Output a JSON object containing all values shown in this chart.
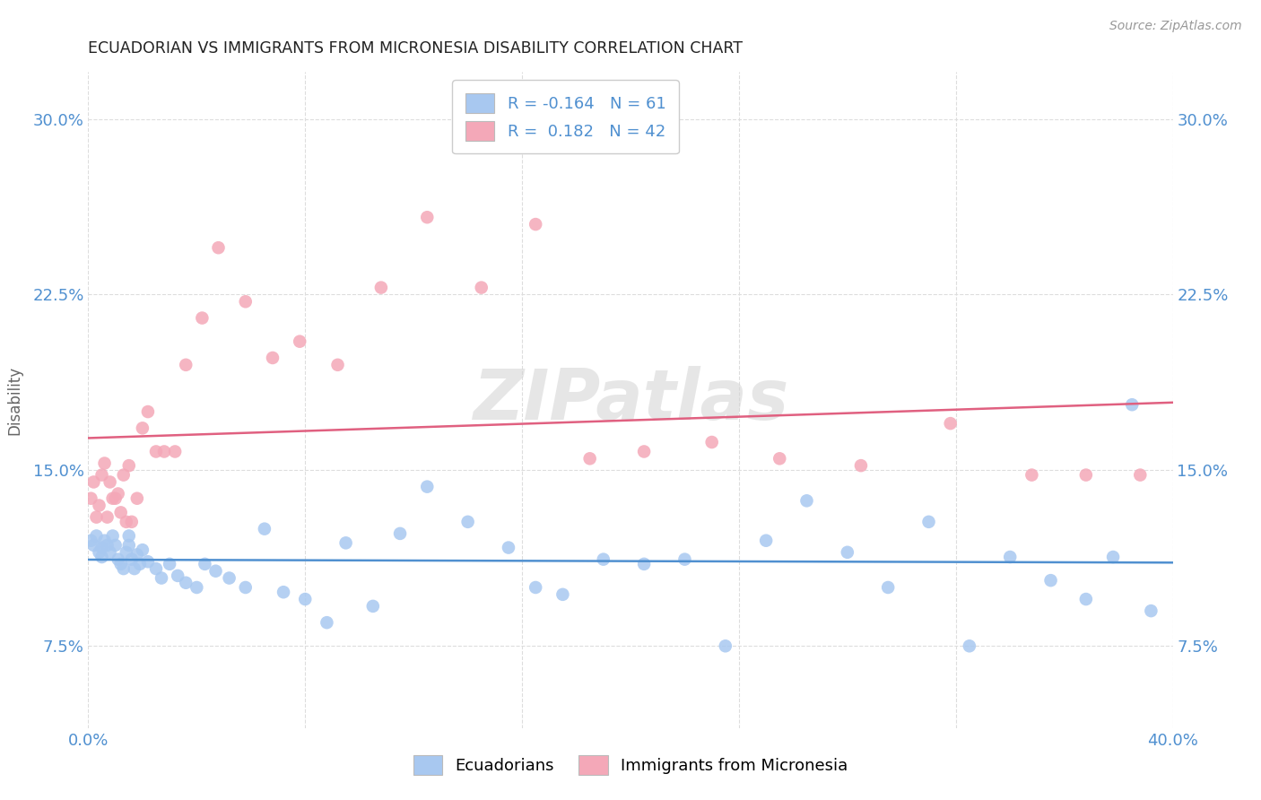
{
  "title": "ECUADORIAN VS IMMIGRANTS FROM MICRONESIA DISABILITY CORRELATION CHART",
  "source": "Source: ZipAtlas.com",
  "ylabel": "Disability",
  "xlim": [
    0.0,
    0.4
  ],
  "ylim": [
    0.04,
    0.32
  ],
  "yticks": [
    0.075,
    0.15,
    0.225,
    0.3
  ],
  "ytick_labels": [
    "7.5%",
    "15.0%",
    "22.5%",
    "30.0%"
  ],
  "xticks": [
    0.0,
    0.08,
    0.16,
    0.24,
    0.32,
    0.4
  ],
  "xtick_labels": [
    "0.0%",
    "",
    "",
    "",
    "",
    "40.0%"
  ],
  "watermark": "ZIPatlas",
  "legend_R1": "-0.164",
  "legend_N1": "61",
  "legend_R2": "0.182",
  "legend_N2": "42",
  "blue_color": "#A8C8F0",
  "pink_color": "#F4A8B8",
  "blue_line_color": "#5090D0",
  "pink_line_color": "#E06080",
  "background_color": "#FFFFFF",
  "grid_color": "#DDDDDD",
  "blue_x": [
    0.001,
    0.002,
    0.003,
    0.004,
    0.005,
    0.005,
    0.006,
    0.007,
    0.008,
    0.009,
    0.01,
    0.011,
    0.012,
    0.013,
    0.014,
    0.015,
    0.015,
    0.016,
    0.017,
    0.018,
    0.019,
    0.02,
    0.022,
    0.025,
    0.027,
    0.03,
    0.033,
    0.036,
    0.04,
    0.043,
    0.047,
    0.052,
    0.058,
    0.065,
    0.072,
    0.08,
    0.088,
    0.095,
    0.105,
    0.115,
    0.125,
    0.14,
    0.155,
    0.165,
    0.175,
    0.19,
    0.205,
    0.22,
    0.235,
    0.25,
    0.265,
    0.28,
    0.295,
    0.31,
    0.325,
    0.34,
    0.355,
    0.368,
    0.378,
    0.385,
    0.392
  ],
  "blue_y": [
    0.12,
    0.118,
    0.122,
    0.115,
    0.117,
    0.113,
    0.12,
    0.118,
    0.115,
    0.122,
    0.118,
    0.112,
    0.11,
    0.108,
    0.115,
    0.118,
    0.122,
    0.112,
    0.108,
    0.114,
    0.11,
    0.116,
    0.111,
    0.108,
    0.104,
    0.11,
    0.105,
    0.102,
    0.1,
    0.11,
    0.107,
    0.104,
    0.1,
    0.125,
    0.098,
    0.095,
    0.085,
    0.119,
    0.092,
    0.123,
    0.143,
    0.128,
    0.117,
    0.1,
    0.097,
    0.112,
    0.11,
    0.112,
    0.075,
    0.12,
    0.137,
    0.115,
    0.1,
    0.128,
    0.075,
    0.113,
    0.103,
    0.095,
    0.113,
    0.178,
    0.09
  ],
  "pink_x": [
    0.001,
    0.002,
    0.003,
    0.004,
    0.005,
    0.006,
    0.007,
    0.008,
    0.009,
    0.01,
    0.011,
    0.012,
    0.013,
    0.014,
    0.015,
    0.016,
    0.018,
    0.02,
    0.022,
    0.025,
    0.028,
    0.032,
    0.036,
    0.042,
    0.048,
    0.058,
    0.068,
    0.078,
    0.092,
    0.108,
    0.125,
    0.145,
    0.165,
    0.185,
    0.205,
    0.23,
    0.255,
    0.285,
    0.318,
    0.348,
    0.368,
    0.388
  ],
  "pink_y": [
    0.138,
    0.145,
    0.13,
    0.135,
    0.148,
    0.153,
    0.13,
    0.145,
    0.138,
    0.138,
    0.14,
    0.132,
    0.148,
    0.128,
    0.152,
    0.128,
    0.138,
    0.168,
    0.175,
    0.158,
    0.158,
    0.158,
    0.195,
    0.215,
    0.245,
    0.222,
    0.198,
    0.205,
    0.195,
    0.228,
    0.258,
    0.228,
    0.255,
    0.155,
    0.158,
    0.162,
    0.155,
    0.152,
    0.17,
    0.148,
    0.148,
    0.148
  ]
}
